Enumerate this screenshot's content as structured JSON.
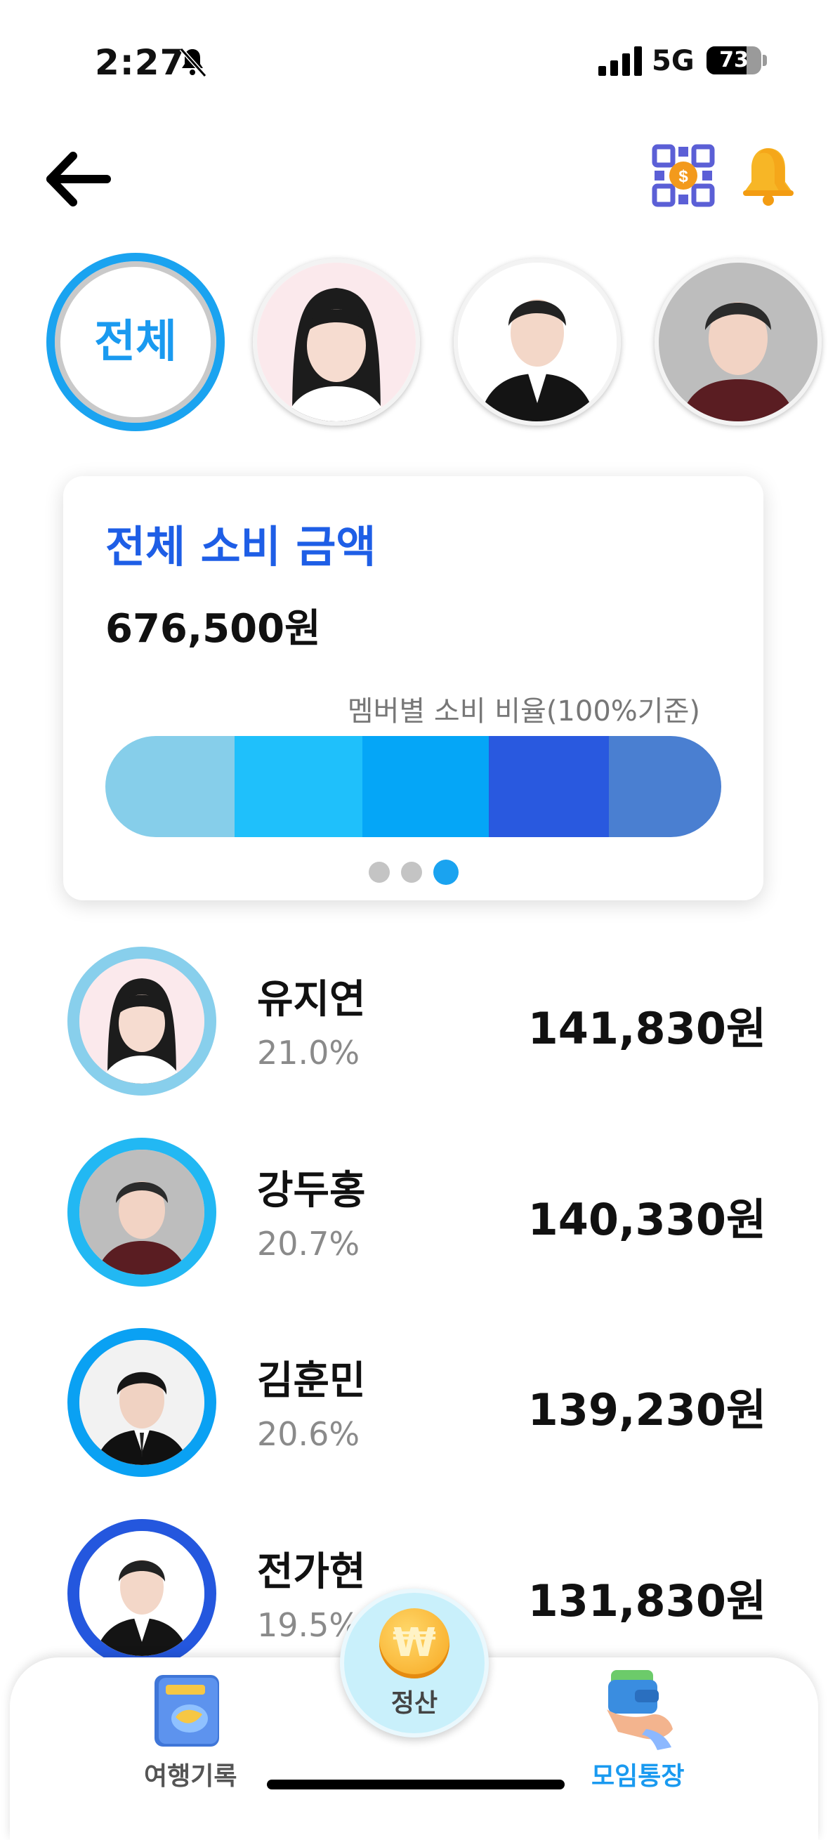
{
  "status_bar": {
    "time": "2:27",
    "network": "5G",
    "battery": "73",
    "battery_level": 0.73
  },
  "header": {
    "back_icon": "arrow-left-icon",
    "qr_icon": "qr-payment-icon",
    "bell_icon": "bell-icon"
  },
  "members_row": {
    "all_label": "전체"
  },
  "summary": {
    "title": "전체 소비 금액",
    "total": "676,500원",
    "caption": "멤버별 소비 비율(100%기준)",
    "segments": [
      {
        "percent": 21.0,
        "color": "#86ceea"
      },
      {
        "percent": 20.7,
        "color": "#1fc0fb"
      },
      {
        "percent": 20.6,
        "color": "#05a6f7"
      },
      {
        "percent": 19.5,
        "color": "#2959df"
      },
      {
        "percent": 18.2,
        "color": "#4a7fd1"
      }
    ],
    "page_count": 3,
    "active_page": 2
  },
  "list": [
    {
      "name": "유지연",
      "percent": "21.0%",
      "amount": "141,830원",
      "ring_color": "#88cfec"
    },
    {
      "name": "강두홍",
      "percent": "20.7%",
      "amount": "140,330원",
      "ring_color": "#22b8f3"
    },
    {
      "name": "김훈민",
      "percent": "20.6%",
      "amount": "139,230원",
      "ring_color": "#0aa1f3"
    },
    {
      "name": "전가현",
      "percent": "19.5%",
      "amount": "131,830원",
      "ring_color": "#2457de"
    }
  ],
  "bottom_nav": {
    "left_label": "여행기록",
    "center_label": "정산",
    "center_symbol": "₩",
    "right_label": "모임통장"
  }
}
